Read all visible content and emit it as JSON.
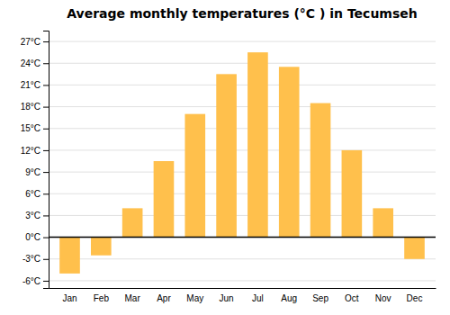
{
  "chart_data": {
    "type": "bar",
    "title": "Average monthly temperatures (°C ) in Tecumseh",
    "categories": [
      "Jan",
      "Feb",
      "Mar",
      "Apr",
      "May",
      "Jun",
      "Jul",
      "Aug",
      "Sep",
      "Oct",
      "Nov",
      "Dec"
    ],
    "values": [
      -5.0,
      -2.5,
      4.0,
      10.5,
      17.0,
      22.5,
      25.5,
      23.5,
      18.5,
      12.0,
      4.0,
      -3.0
    ],
    "color": "#FFC04C",
    "ylim": [
      -7.0,
      28.5
    ],
    "yticks": [
      {
        "value": -6,
        "label": "-6°C"
      },
      {
        "value": -3,
        "label": "-3°C"
      },
      {
        "value": 0,
        "label": "0°C"
      },
      {
        "value": 3,
        "label": "3°C"
      },
      {
        "value": 6,
        "label": "6°C"
      },
      {
        "value": 9,
        "label": "9°C"
      },
      {
        "value": 12,
        "label": "12°C"
      },
      {
        "value": 15,
        "label": "15°C"
      },
      {
        "value": 18,
        "label": "18°C"
      },
      {
        "value": 21,
        "label": "21°C"
      },
      {
        "value": 24,
        "label": "24°C"
      },
      {
        "value": 27,
        "label": "27°C"
      }
    ],
    "grid": true
  }
}
